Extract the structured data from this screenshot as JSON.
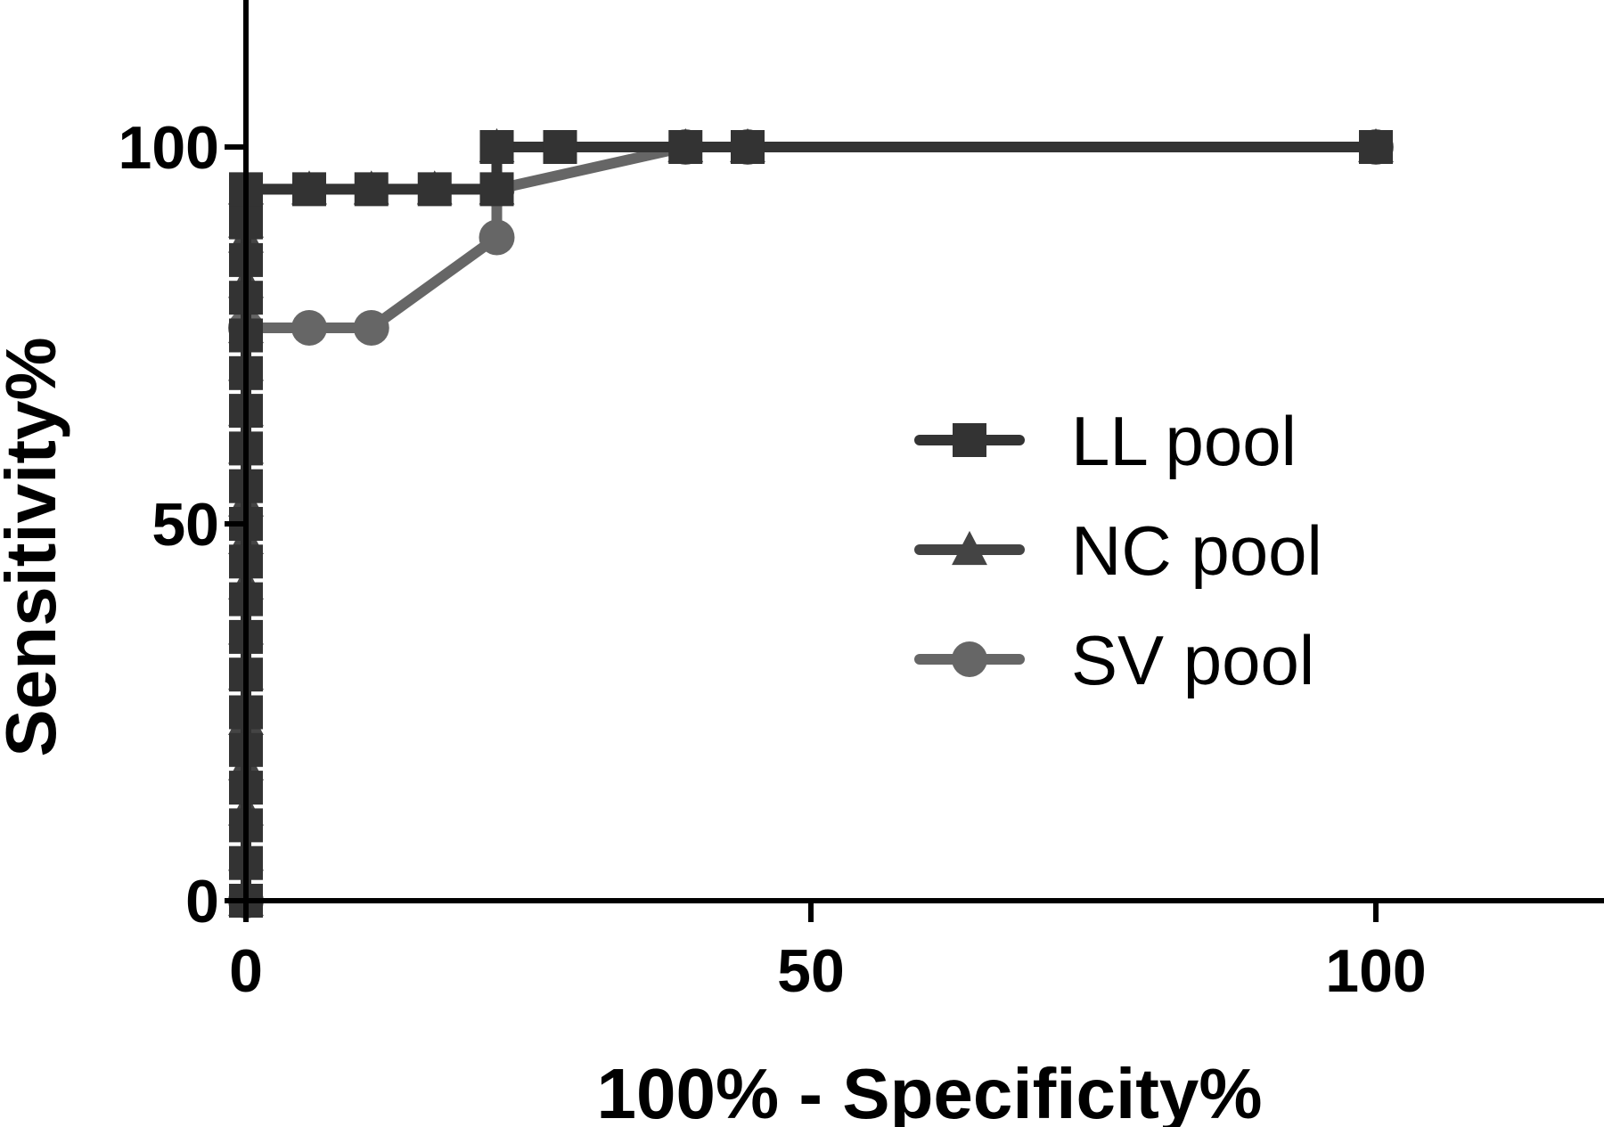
{
  "chart_data": {
    "type": "line",
    "xlabel": "100% - Specificity%",
    "ylabel": "Sensitivity%",
    "xlim": [
      0,
      120
    ],
    "ylim": [
      0,
      120
    ],
    "xticks": [
      0,
      50,
      100
    ],
    "yticks": [
      0,
      50,
      100
    ],
    "legend": "right-center",
    "grid": false,
    "series": [
      {
        "name": "LL pool",
        "marker": "square",
        "color": "#333333",
        "x": [
          0,
          0,
          0,
          0,
          0,
          0,
          0,
          0,
          0,
          0,
          0,
          0,
          0,
          0,
          0,
          0,
          0,
          0,
          0,
          0,
          5.6,
          11.1,
          16.7,
          22.2,
          22.2,
          27.8,
          38.9,
          44.4,
          100
        ],
        "y": [
          0,
          5,
          10,
          15,
          20,
          25,
          30,
          35,
          40,
          45,
          50,
          55,
          60,
          65,
          70,
          75,
          80,
          85,
          90,
          94.4,
          94.4,
          94.4,
          94.4,
          94.4,
          100,
          100,
          100,
          100,
          100
        ]
      },
      {
        "name": "NC pool",
        "marker": "triangle",
        "color": "#444444",
        "x": [
          0,
          0,
          0,
          0,
          0,
          0,
          0,
          0,
          0,
          0,
          0,
          0,
          0,
          0,
          0,
          0,
          0,
          0,
          0,
          5.6,
          11.1,
          16.7,
          22.2,
          22.2,
          38.9,
          44.4,
          100
        ],
        "y": [
          0,
          6,
          12,
          18,
          24,
          30,
          36,
          42,
          48,
          53,
          60,
          65,
          71,
          76,
          82,
          88,
          90,
          94.4,
          94.4,
          94.4,
          94.4,
          94.4,
          94.4,
          100,
          100,
          100,
          100
        ]
      },
      {
        "name": "SV pool",
        "marker": "circle",
        "color": "#666666",
        "x": [
          0,
          0,
          5.6,
          11.1,
          22.2,
          22.2,
          38.9,
          44.4,
          100
        ],
        "y": [
          0,
          76,
          76,
          76,
          88,
          94.4,
          100,
          100,
          100
        ]
      }
    ]
  }
}
